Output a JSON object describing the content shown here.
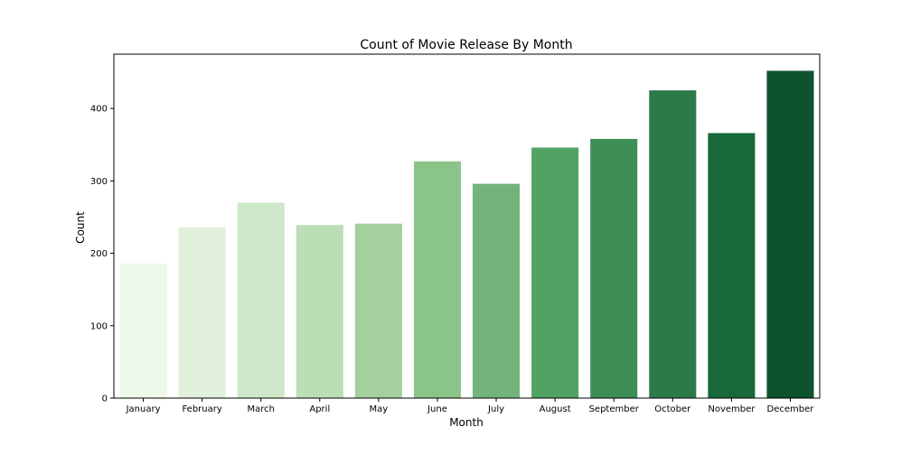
{
  "chart_data": {
    "type": "bar",
    "title": "Count of Movie Release By Month",
    "xlabel": "Month",
    "ylabel": "Count",
    "categories": [
      "January",
      "February",
      "March",
      "April",
      "May",
      "June",
      "July",
      "August",
      "September",
      "October",
      "November",
      "December"
    ],
    "values": [
      186,
      236,
      270,
      239,
      241,
      327,
      296,
      346,
      358,
      425,
      366,
      452
    ],
    "colors": [
      "#edf8e9",
      "#e0f0db",
      "#cde8c8",
      "#bbdeb6",
      "#a3d09d",
      "#8bc489",
      "#72b47a",
      "#52a264",
      "#3d8d57",
      "#2b7b48",
      "#17693a",
      "#0d532d"
    ],
    "ylim": [
      0,
      475
    ],
    "yticks": [
      0,
      100,
      200,
      300,
      400
    ],
    "grid": false,
    "legend": "none"
  }
}
